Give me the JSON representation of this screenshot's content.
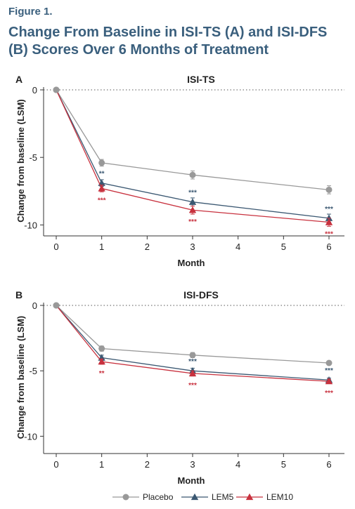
{
  "figure": {
    "label": "Figure 1.",
    "title": "Change From Baseline in ISI-TS (A) and ISI-DFS (B) Scores Over 6 Months of Treatment"
  },
  "colors": {
    "Placebo": "#999999",
    "LEM5": "#3b5872",
    "LEM10": "#c8313e",
    "accent": "#3a5f7d"
  },
  "legend": {
    "items": [
      "Placebo",
      "LEM5",
      "LEM10"
    ],
    "placement": "bottom-center"
  },
  "chart_data": [
    {
      "type": "line",
      "panel": "A",
      "title": "ISI-TS",
      "xlabel": "Month",
      "ylabel": "Change from baseline (LSM)",
      "xlim": [
        0,
        6.5
      ],
      "ylim": [
        -10.5,
        0
      ],
      "xticks": [
        0,
        1,
        2,
        3,
        4,
        5,
        6
      ],
      "yticks": [
        0,
        -5,
        -10
      ],
      "reference_line": 0,
      "x": [
        0,
        1,
        3,
        6
      ],
      "series": [
        {
          "name": "Placebo",
          "marker": "circle",
          "values": [
            0,
            -5.4,
            -6.3,
            -7.4
          ],
          "errors": [
            0,
            0.25,
            0.3,
            0.3
          ]
        },
        {
          "name": "LEM5",
          "marker": "triangle",
          "values": [
            0,
            -6.9,
            -8.3,
            -9.5
          ],
          "errors": [
            0,
            0.25,
            0.3,
            0.3
          ],
          "significance": [
            "",
            "**",
            "***",
            "***"
          ]
        },
        {
          "name": "LEM10",
          "marker": "triangle",
          "values": [
            0,
            -7.3,
            -8.9,
            -9.8
          ],
          "errors": [
            0,
            0.25,
            0.3,
            0.3
          ],
          "significance": [
            "",
            "***",
            "***",
            "***"
          ]
        }
      ]
    },
    {
      "type": "line",
      "panel": "B",
      "title": "ISI-DFS",
      "xlabel": "Month",
      "ylabel": "Change from baseline (LSM)",
      "xlim": [
        0,
        6.5
      ],
      "ylim": [
        -11,
        0
      ],
      "xticks": [
        0,
        1,
        2,
        3,
        4,
        5,
        6
      ],
      "yticks": [
        0,
        -5,
        -10
      ],
      "reference_line": 0,
      "x": [
        0,
        1,
        3,
        6
      ],
      "series": [
        {
          "name": "Placebo",
          "marker": "circle",
          "values": [
            0,
            -3.3,
            -3.8,
            -4.4
          ],
          "errors": [
            0,
            0.2,
            0.2,
            0.15
          ]
        },
        {
          "name": "LEM5",
          "marker": "triangle",
          "values": [
            0,
            -4.0,
            -5.0,
            -5.7
          ],
          "errors": [
            0,
            0.2,
            0.2,
            0.15
          ],
          "significance": [
            "",
            "",
            "***",
            "***"
          ]
        },
        {
          "name": "LEM10",
          "marker": "triangle",
          "values": [
            0,
            -4.3,
            -5.2,
            -5.8
          ],
          "errors": [
            0,
            0.2,
            0.2,
            0.15
          ],
          "significance": [
            "",
            "**",
            "***",
            "***"
          ]
        }
      ]
    }
  ]
}
